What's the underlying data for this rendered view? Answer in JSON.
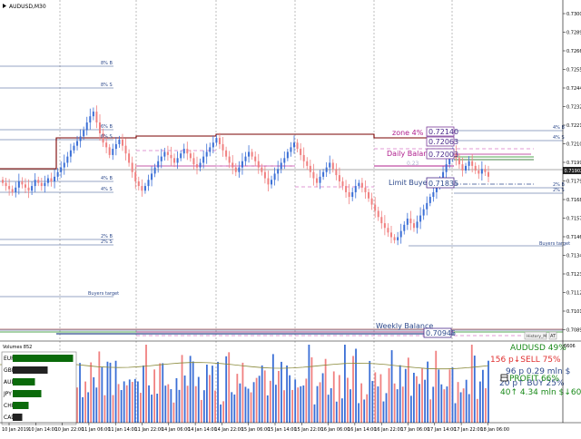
{
  "window": {
    "symbol_title": "AUDUSD,M30"
  },
  "colors": {
    "bull": "#3b6fd6",
    "bear": "#f08080",
    "dark_red": "#7a0000",
    "blue_line": "#2e4a8c",
    "magenta": "#b0208e",
    "pink_dash": "#d878c8",
    "green": "#1a8a1a",
    "dark_green": "#0a5a0a",
    "price_tag_bg": "#222222",
    "grid": "#909090"
  },
  "price_axis": {
    "labels": [
      "0.73000",
      "0.72890",
      "0.72665",
      "0.72550",
      "0.72440",
      "0.72325",
      "0.72215",
      "0.72100",
      "0.71990",
      "0.71795",
      "0.71685",
      "0.71570",
      "0.71460",
      "0.71345",
      "0.71235",
      "0.71120",
      "0.71010",
      "0.70895"
    ],
    "current_price": "0.71902"
  },
  "levels": {
    "eight_b": "8% B",
    "eight_s": "8% S",
    "six_b": "6% B",
    "six_s": "6% S",
    "four_b": "4% B",
    "four_s": "4% S",
    "two_b": "2% B",
    "two_s": "2% S",
    "buyers_target": "Buyers target",
    "buyers_target_right": "Buyers target",
    "four_b_right": "4% B",
    "four_s_right": "4% S",
    "two_b_right": "2% B",
    "two_s_right": "2% S",
    "zone_label": "zone 4%",
    "zone_value_1": "0.72140",
    "zone_value_2": "0.72063",
    "daily_label": "Daily Balance",
    "daily_value": "0.72003",
    "limit_label": "Limit Buyers",
    "limit_value": "0.71835",
    "weekly_label": "Weekly Balance",
    "weekly_value": "0.70945",
    "history_button": "History_M",
    "small_label": "0.23"
  },
  "volumes": {
    "title": "Volumes 852",
    "scale": "6606",
    "currency_strength": [
      {
        "name": "EUR",
        "strength": 0.95,
        "color": "#0a6a0a"
      },
      {
        "name": "GBP",
        "strength": 0.55,
        "color": "#222222"
      },
      {
        "name": "AUD",
        "strength": 0.35,
        "color": "#0a6a0a"
      },
      {
        "name": "JPY",
        "strength": 0.45,
        "color": "#0a6a0a"
      },
      {
        "name": "CHF",
        "strength": 0.25,
        "color": "#0a6a0a"
      },
      {
        "name": "CAD",
        "strength": 0.15,
        "color": "#222222"
      }
    ]
  },
  "info_panel": {
    "line1": "AUDUSD 49%",
    "line2": "156 p↓SELL 75%",
    "line3": "96 p   0.29 mln $",
    "line4": "20 p↑ BUY 25%",
    "line5": "PROFIT 66%",
    "line6": "40↑  4.34 mln $↓60"
  },
  "time_axis": {
    "labels": [
      "10 Jan 2019",
      "10 Jan 14:00",
      "10 Jan 22:00",
      "11 Jan 06:00",
      "11 Jan 14:00",
      "11 Jan 22:00",
      "14 Jan 06:00",
      "14 Jan 14:00",
      "14 Jan 22:00",
      "15 Jan 06:00",
      "15 Jan 14:00",
      "15 Jan 22:00",
      "16 Jan 06:00",
      "16 Jan 14:00",
      "16 Jan 22:00",
      "17 Jan 06:00",
      "17 Jan 14:00",
      "17 Jan 22:00",
      "18 Jan 06:00"
    ]
  },
  "chart_data": {
    "type": "candlestick",
    "title": "AUDUSD,M30",
    "y_range": [
      0.7084,
      0.7304
    ],
    "close_path": [
      0.7186,
      0.7184,
      0.7182,
      0.718,
      0.7183,
      0.7187,
      0.7185,
      0.7183,
      0.7181,
      0.7184,
      0.7188,
      0.7186,
      0.7184,
      0.7186,
      0.7189,
      0.7187,
      0.719,
      0.7193,
      0.7196,
      0.7199,
      0.7203,
      0.7207,
      0.721,
      0.7213,
      0.7216,
      0.722,
      0.7225,
      0.7229,
      0.7232,
      0.7225,
      0.7218,
      0.7212,
      0.7209,
      0.7204,
      0.7208,
      0.7211,
      0.7214,
      0.721,
      0.7205,
      0.7199,
      0.7193,
      0.7187,
      0.7184,
      0.7181,
      0.7184,
      0.7188,
      0.7192,
      0.7196,
      0.72,
      0.7203,
      0.7206,
      0.7204,
      0.7202,
      0.7199,
      0.7202,
      0.7205,
      0.7208,
      0.7205,
      0.7202,
      0.7198,
      0.7196,
      0.7199,
      0.7203,
      0.7206,
      0.7209,
      0.7212,
      0.7215,
      0.7211,
      0.7207,
      0.7203,
      0.7199,
      0.7196,
      0.7193,
      0.7196,
      0.72,
      0.7203,
      0.7206,
      0.7203,
      0.72,
      0.7196,
      0.7193,
      0.7189,
      0.7185,
      0.7188,
      0.7192,
      0.7195,
      0.7199,
      0.7202,
      0.7206,
      0.7209,
      0.7212,
      0.7208,
      0.7204,
      0.72,
      0.7197,
      0.7193,
      0.7189,
      0.7186,
      0.719,
      0.7193,
      0.7196,
      0.7199,
      0.7195,
      0.7191,
      0.7187,
      0.7184,
      0.718,
      0.7177,
      0.718,
      0.7184,
      0.7186,
      0.7183,
      0.718,
      0.7176,
      0.7172,
      0.7168,
      0.7164,
      0.716,
      0.7157,
      0.7154,
      0.7151,
      0.7149,
      0.7151,
      0.7155,
      0.7159,
      0.7163,
      0.716,
      0.7157,
      0.7161,
      0.7165,
      0.7169,
      0.7173,
      0.7177,
      0.718,
      0.7184,
      0.7188,
      0.7193,
      0.7198,
      0.7203,
      0.7205,
      0.7202,
      0.7198,
      0.7194,
      0.7197,
      0.72,
      0.7197,
      0.7194,
      0.7192,
      0.7195,
      0.7193,
      0.719
    ]
  }
}
